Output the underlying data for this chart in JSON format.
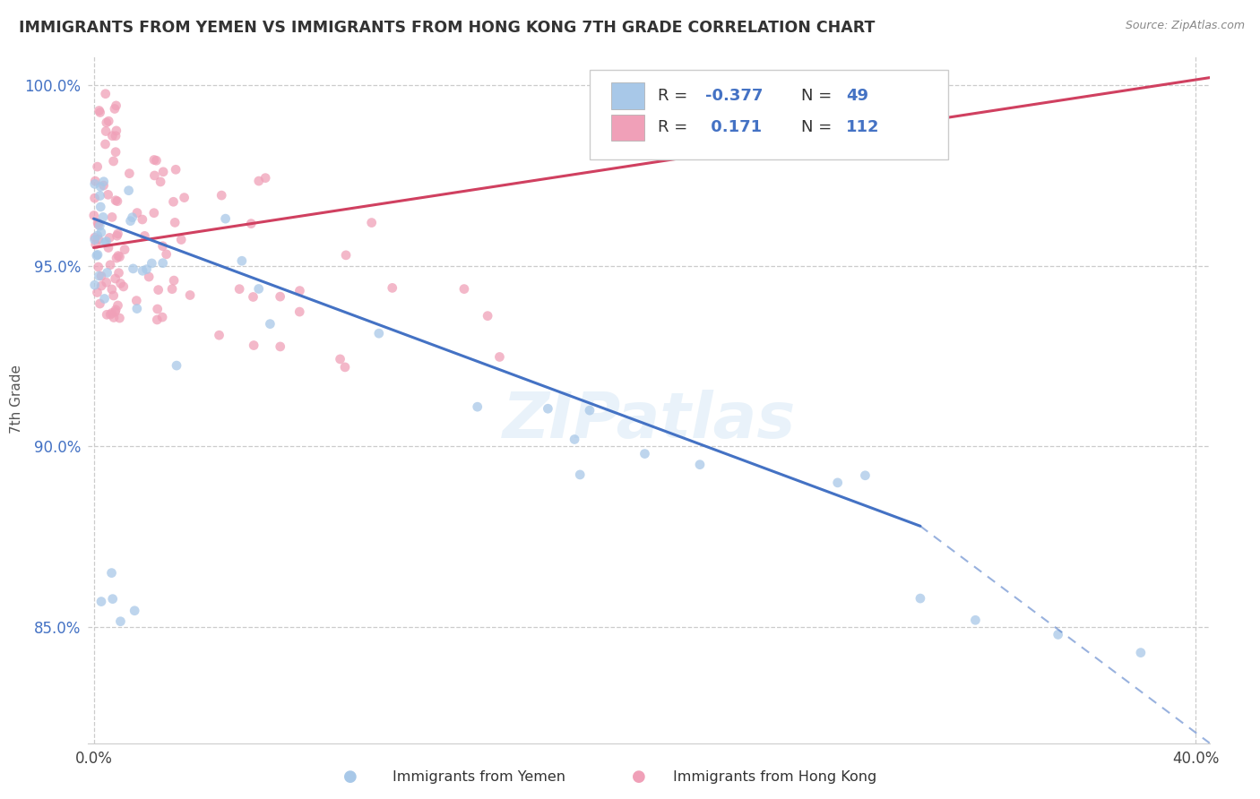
{
  "title": "IMMIGRANTS FROM YEMEN VS IMMIGRANTS FROM HONG KONG 7TH GRADE CORRELATION CHART",
  "source": "Source: ZipAtlas.com",
  "ylabel": "7th Grade",
  "ylim": [
    0.818,
    1.008
  ],
  "xlim": [
    -0.002,
    0.405
  ],
  "yticks": [
    0.85,
    0.9,
    0.95,
    1.0
  ],
  "ytick_labels": [
    "85.0%",
    "90.0%",
    "95.0%",
    "100.0%"
  ],
  "color_yemen": "#a8c8e8",
  "color_hk": "#f0a0b8",
  "color_trendline_yemen": "#4472c4",
  "color_trendline_hk": "#d04060",
  "color_axis": "#4472c4",
  "color_r_value": "#4472c4",
  "watermark": "ZIPatlas",
  "trendline_yemen_x0": 0.0,
  "trendline_yemen_y0": 0.963,
  "trendline_yemen_x1": 0.3,
  "trendline_yemen_y1": 0.878,
  "trendline_yemen_dash_x1": 0.405,
  "trendline_yemen_dash_y1": 0.818,
  "trendline_hk_x0": 0.0,
  "trendline_hk_y0": 0.955,
  "trendline_hk_x1": 0.405,
  "trendline_hk_y1": 1.002
}
